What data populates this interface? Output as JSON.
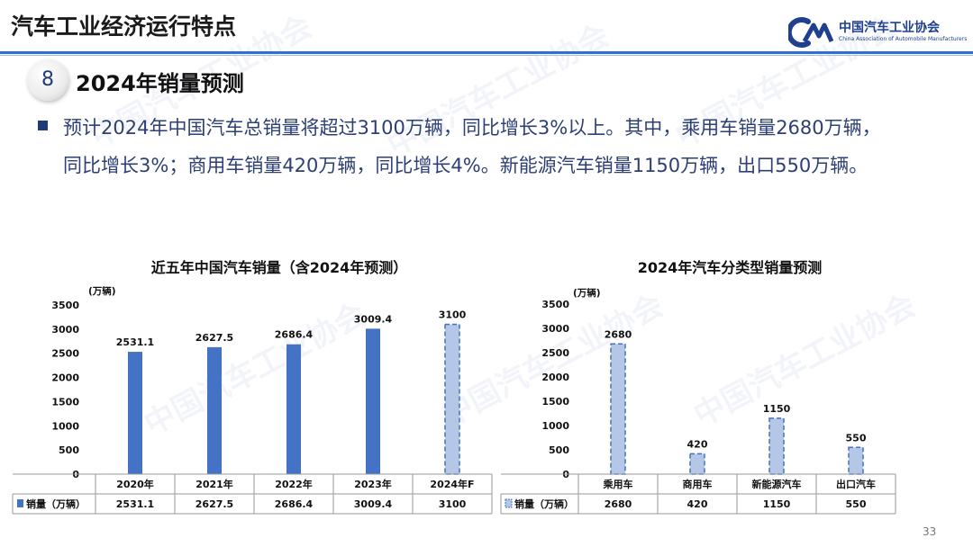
{
  "header": {
    "title": "汽车工业经济运行特点",
    "logo_text": "中国汽车工业协会",
    "logo_subtext": "China Association of Automobile Manufacturers"
  },
  "section": {
    "number": "8",
    "title": "2024年销量预测"
  },
  "paragraph": {
    "line1": "预计2024年中国汽车总销量将超过3100万辆，同比增长3%以上。其中，乘用车销量2680万辆，",
    "line2": "同比增长3%；商用车销量420万辆，同比增长4%。新能源汽车销量1150万辆，出口550万辆。"
  },
  "page_number": "33",
  "colors": {
    "accent": "#4472c4",
    "forecast_fill": "#b4c7e7",
    "header_rule": "#2f6fd0",
    "text_dark_blue": "#2d3f74"
  },
  "chart_data": [
    {
      "type": "bar",
      "title": "近五年中国汽车销量（含2024年预测）",
      "unit_label": "(万辆)",
      "categories": [
        "2020年",
        "2021年",
        "2022年",
        "2023年",
        "2024年F"
      ],
      "series": [
        {
          "name": "销量（万辆）",
          "values": [
            2531.1,
            2627.5,
            2686.4,
            3009.4,
            3100
          ]
        }
      ],
      "data_labels": [
        "2531.1",
        "2627.5",
        "2686.4",
        "3009.4",
        "3100"
      ],
      "forecast_index": [
        4
      ],
      "ylim": [
        0,
        3500
      ],
      "yticks": [
        "0",
        "500",
        "1000",
        "1500",
        "2000",
        "2500",
        "3000",
        "3500"
      ],
      "data_table": true,
      "grid": false
    },
    {
      "type": "bar",
      "title": "2024年汽车分类型销量预测",
      "unit_label": "(万辆)",
      "categories": [
        "乘用车",
        "商用车",
        "新能源汽车",
        "出口汽车"
      ],
      "series": [
        {
          "name": "销量（万辆）",
          "values": [
            2680,
            420,
            1150,
            550
          ]
        }
      ],
      "data_labels": [
        "2680",
        "420",
        "1150",
        "550"
      ],
      "forecast_index": [
        0,
        1,
        2,
        3
      ],
      "ylim": [
        0,
        3500
      ],
      "yticks": [
        "0",
        "500",
        "1000",
        "1500",
        "2000",
        "2500",
        "3000",
        "3500"
      ],
      "data_table": true,
      "grid": false
    }
  ]
}
